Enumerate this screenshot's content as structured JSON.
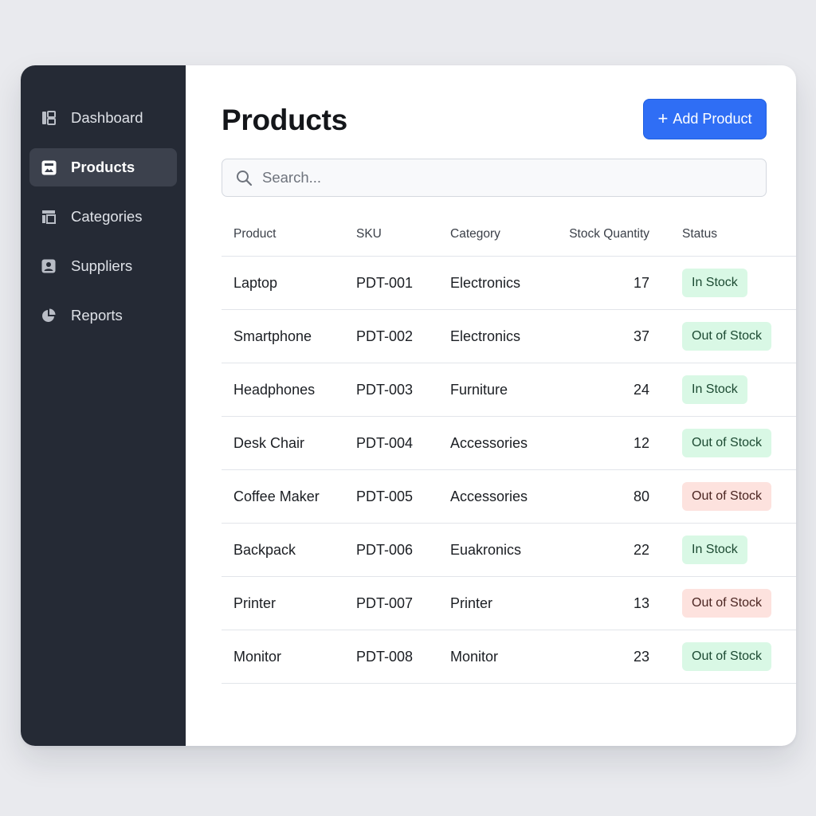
{
  "sidebar": {
    "items": [
      {
        "label": "Dashboard",
        "icon": "dashboard-icon",
        "active": false
      },
      {
        "label": "Products",
        "icon": "products-icon",
        "active": true
      },
      {
        "label": "Categories",
        "icon": "categories-icon",
        "active": false
      },
      {
        "label": "Suppliers",
        "icon": "suppliers-icon",
        "active": false
      },
      {
        "label": "Reports",
        "icon": "reports-icon",
        "active": false
      }
    ]
  },
  "header": {
    "title": "Products",
    "add_button_label": "Add Product",
    "add_button_icon": "+"
  },
  "search": {
    "placeholder": "Search...",
    "value": ""
  },
  "table": {
    "columns": [
      "Product",
      "SKU",
      "Category",
      "Stock Quantity",
      "Status"
    ],
    "rows": [
      {
        "product": "Laptop",
        "sku": "PDT-001",
        "category": "Electronics",
        "stock": "17",
        "status": "In Stock",
        "status_color": "green"
      },
      {
        "product": "Smartphone",
        "sku": "PDT-002",
        "category": "Electronics",
        "stock": "37",
        "status": "Out of Stock",
        "status_color": "green"
      },
      {
        "product": "Headphones",
        "sku": "PDT-003",
        "category": "Furniture",
        "stock": "24",
        "status": "In Stock",
        "status_color": "green"
      },
      {
        "product": "Desk Chair",
        "sku": "PDT-004",
        "category": "Accessories",
        "stock": "12",
        "status": "Out of Stock",
        "status_color": "green"
      },
      {
        "product": "Coffee Maker",
        "sku": "PDT-005",
        "category": "Accessories",
        "stock": "80",
        "status": "Out of Stock",
        "status_color": "red"
      },
      {
        "product": "Backpack",
        "sku": "PDT-006",
        "category": "Euakronics",
        "stock": "22",
        "status": "In Stock",
        "status_color": "green"
      },
      {
        "product": "Printer",
        "sku": "PDT-007",
        "category": "Printer",
        "stock": "13",
        "status": "Out of Stock",
        "status_color": "red"
      },
      {
        "product": "Monitor",
        "sku": "PDT-008",
        "category": "Monitor",
        "stock": "23",
        "status": "Out of Stock",
        "status_color": "green"
      }
    ]
  },
  "colors": {
    "sidebar_bg": "#252a35",
    "sidebar_active_bg": "#3c414d",
    "accent": "#2f6ef5",
    "badge_green_bg": "#d9f8e5",
    "badge_red_bg": "#fde2de"
  }
}
